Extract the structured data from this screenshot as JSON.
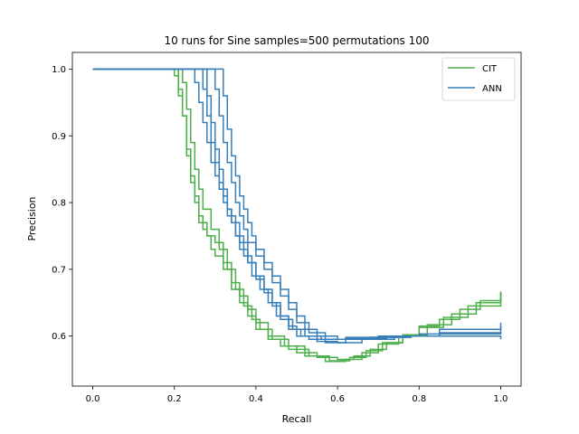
{
  "chart_data": {
    "type": "line",
    "title": "10 runs for Sine samples=500 permutations 100",
    "xlabel": "Recall",
    "ylabel": "Precision",
    "xlim": [
      -0.05,
      1.05
    ],
    "ylim": [
      0.525,
      1.025
    ],
    "xticks": [
      "0.0",
      "0.2",
      "0.4",
      "0.6",
      "0.8",
      "1.0"
    ],
    "yticks": [
      "0.6",
      "0.7",
      "0.8",
      "0.9",
      "1.0"
    ],
    "grid": false,
    "legend_position": "top-right",
    "series": [
      {
        "name": "CIT",
        "color": "#4daf4a",
        "style": "steps",
        "runs": [
          [
            [
              0.0,
              1.0
            ],
            [
              0.19,
              1.0
            ],
            [
              0.2,
              0.99
            ],
            [
              0.21,
              0.96
            ],
            [
              0.22,
              0.93
            ],
            [
              0.23,
              0.88
            ],
            [
              0.24,
              0.84
            ],
            [
              0.25,
              0.81
            ],
            [
              0.26,
              0.78
            ],
            [
              0.27,
              0.76
            ],
            [
              0.28,
              0.75
            ],
            [
              0.29,
              0.73
            ],
            [
              0.3,
              0.72
            ],
            [
              0.32,
              0.7
            ],
            [
              0.34,
              0.67
            ],
            [
              0.36,
              0.65
            ],
            [
              0.38,
              0.63
            ],
            [
              0.4,
              0.61
            ],
            [
              0.43,
              0.595
            ],
            [
              0.46,
              0.585
            ],
            [
              0.5,
              0.575
            ],
            [
              0.55,
              0.568
            ],
            [
              0.6,
              0.565
            ],
            [
              0.64,
              0.57
            ],
            [
              0.68,
              0.58
            ],
            [
              0.72,
              0.59
            ],
            [
              0.76,
              0.6
            ],
            [
              0.8,
              0.615
            ],
            [
              0.85,
              0.625
            ],
            [
              0.9,
              0.64
            ],
            [
              0.95,
              0.653
            ],
            [
              1.0,
              0.667
            ]
          ],
          [
            [
              0.0,
              1.0
            ],
            [
              0.2,
              1.0
            ],
            [
              0.21,
              0.97
            ],
            [
              0.22,
              0.93
            ],
            [
              0.23,
              0.87
            ],
            [
              0.24,
              0.83
            ],
            [
              0.25,
              0.8
            ],
            [
              0.26,
              0.77
            ],
            [
              0.28,
              0.75
            ],
            [
              0.3,
              0.74
            ],
            [
              0.32,
              0.71
            ],
            [
              0.34,
              0.68
            ],
            [
              0.36,
              0.66
            ],
            [
              0.38,
              0.64
            ],
            [
              0.4,
              0.62
            ],
            [
              0.43,
              0.6
            ],
            [
              0.47,
              0.585
            ],
            [
              0.52,
              0.57
            ],
            [
              0.57,
              0.562
            ],
            [
              0.62,
              0.565
            ],
            [
              0.66,
              0.575
            ],
            [
              0.7,
              0.588
            ],
            [
              0.75,
              0.6
            ],
            [
              0.8,
              0.613
            ],
            [
              0.86,
              0.628
            ],
            [
              0.92,
              0.645
            ],
            [
              1.0,
              0.665
            ]
          ],
          [
            [
              0.0,
              1.0
            ],
            [
              0.21,
              1.0
            ],
            [
              0.22,
              0.98
            ],
            [
              0.23,
              0.94
            ],
            [
              0.24,
              0.89
            ],
            [
              0.25,
              0.85
            ],
            [
              0.26,
              0.82
            ],
            [
              0.27,
              0.79
            ],
            [
              0.29,
              0.76
            ],
            [
              0.31,
              0.73
            ],
            [
              0.33,
              0.7
            ],
            [
              0.35,
              0.67
            ],
            [
              0.37,
              0.645
            ],
            [
              0.39,
              0.625
            ],
            [
              0.41,
              0.61
            ],
            [
              0.44,
              0.595
            ],
            [
              0.48,
              0.58
            ],
            [
              0.53,
              0.57
            ],
            [
              0.58,
              0.563
            ],
            [
              0.63,
              0.568
            ],
            [
              0.67,
              0.578
            ],
            [
              0.71,
              0.59
            ],
            [
              0.76,
              0.602
            ],
            [
              0.82,
              0.617
            ],
            [
              0.88,
              0.633
            ],
            [
              0.94,
              0.65
            ],
            [
              1.0,
              0.664
            ]
          ]
        ]
      },
      {
        "name": "ANN",
        "color": "#377eb8",
        "style": "steps",
        "runs": [
          [
            [
              0.0,
              1.0
            ],
            [
              0.27,
              1.0
            ],
            [
              0.28,
              0.96
            ],
            [
              0.29,
              0.92
            ],
            [
              0.3,
              0.88
            ],
            [
              0.31,
              0.85
            ],
            [
              0.32,
              0.82
            ],
            [
              0.33,
              0.79
            ],
            [
              0.34,
              0.77
            ],
            [
              0.35,
              0.75
            ],
            [
              0.36,
              0.73
            ],
            [
              0.38,
              0.71
            ],
            [
              0.4,
              0.69
            ],
            [
              0.42,
              0.67
            ],
            [
              0.44,
              0.65
            ],
            [
              0.46,
              0.63
            ],
            [
              0.48,
              0.615
            ],
            [
              0.5,
              0.6
            ],
            [
              0.53,
              0.595
            ],
            [
              0.57,
              0.59
            ],
            [
              0.62,
              0.595
            ],
            [
              0.68,
              0.598
            ],
            [
              0.75,
              0.6
            ],
            [
              0.85,
              0.6
            ],
            [
              1.0,
              0.6
            ]
          ],
          [
            [
              0.0,
              1.0
            ],
            [
              0.29,
              1.0
            ],
            [
              0.3,
              0.97
            ],
            [
              0.31,
              0.93
            ],
            [
              0.32,
              0.89
            ],
            [
              0.33,
              0.86
            ],
            [
              0.34,
              0.83
            ],
            [
              0.35,
              0.8
            ],
            [
              0.36,
              0.78
            ],
            [
              0.37,
              0.76
            ],
            [
              0.38,
              0.74
            ],
            [
              0.4,
              0.72
            ],
            [
              0.42,
              0.7
            ],
            [
              0.44,
              0.68
            ],
            [
              0.46,
              0.66
            ],
            [
              0.48,
              0.64
            ],
            [
              0.5,
              0.62
            ],
            [
              0.53,
              0.605
            ],
            [
              0.57,
              0.595
            ],
            [
              0.62,
              0.598
            ],
            [
              0.7,
              0.6
            ],
            [
              0.8,
              0.603
            ],
            [
              1.0,
              0.605
            ]
          ],
          [
            [
              0.0,
              1.0
            ],
            [
              0.24,
              1.0
            ],
            [
              0.25,
              0.98
            ],
            [
              0.26,
              0.95
            ],
            [
              0.27,
              0.92
            ],
            [
              0.28,
              0.89
            ],
            [
              0.29,
              0.86
            ],
            [
              0.3,
              0.84
            ],
            [
              0.31,
              0.82
            ],
            [
              0.32,
              0.8
            ],
            [
              0.33,
              0.78
            ],
            [
              0.35,
              0.75
            ],
            [
              0.37,
              0.72
            ],
            [
              0.39,
              0.69
            ],
            [
              0.41,
              0.67
            ],
            [
              0.43,
              0.65
            ],
            [
              0.45,
              0.63
            ],
            [
              0.48,
              0.61
            ],
            [
              0.51,
              0.6
            ],
            [
              0.55,
              0.592
            ],
            [
              0.6,
              0.59
            ],
            [
              0.66,
              0.595
            ],
            [
              0.74,
              0.6
            ],
            [
              0.85,
              0.61
            ],
            [
              1.0,
              0.615
            ]
          ],
          [
            [
              0.0,
              1.0
            ],
            [
              0.31,
              1.0
            ],
            [
              0.32,
              0.96
            ],
            [
              0.33,
              0.91
            ],
            [
              0.34,
              0.87
            ],
            [
              0.35,
              0.84
            ],
            [
              0.36,
              0.81
            ],
            [
              0.37,
              0.79
            ],
            [
              0.38,
              0.77
            ],
            [
              0.39,
              0.75
            ],
            [
              0.4,
              0.73
            ],
            [
              0.42,
              0.71
            ],
            [
              0.44,
              0.69
            ],
            [
              0.46,
              0.67
            ],
            [
              0.48,
              0.65
            ],
            [
              0.5,
              0.63
            ],
            [
              0.52,
              0.61
            ],
            [
              0.55,
              0.6
            ],
            [
              0.6,
              0.595
            ],
            [
              0.68,
              0.598
            ],
            [
              0.78,
              0.6
            ],
            [
              1.0,
              0.595
            ]
          ],
          [
            [
              0.0,
              1.0
            ],
            [
              0.26,
              1.0
            ],
            [
              0.27,
              0.97
            ],
            [
              0.28,
              0.93
            ],
            [
              0.29,
              0.89
            ],
            [
              0.3,
              0.86
            ],
            [
              0.31,
              0.83
            ],
            [
              0.32,
              0.81
            ],
            [
              0.33,
              0.79
            ],
            [
              0.34,
              0.77
            ],
            [
              0.36,
              0.74
            ],
            [
              0.38,
              0.71
            ],
            [
              0.4,
              0.685
            ],
            [
              0.42,
              0.665
            ],
            [
              0.44,
              0.645
            ],
            [
              0.46,
              0.625
            ],
            [
              0.49,
              0.61
            ],
            [
              0.52,
              0.6
            ],
            [
              0.56,
              0.595
            ],
            [
              0.62,
              0.597
            ],
            [
              0.72,
              0.6
            ],
            [
              0.85,
              0.605
            ],
            [
              1.0,
              0.62
            ]
          ]
        ]
      }
    ]
  }
}
